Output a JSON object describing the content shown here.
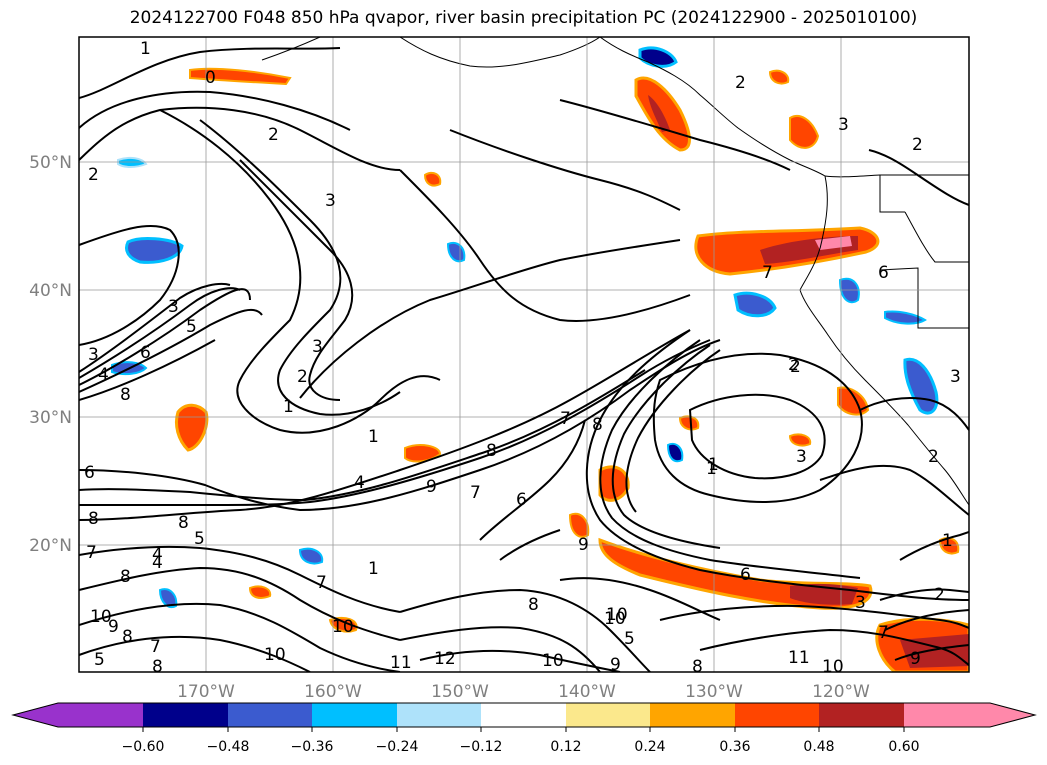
{
  "title": "2024122700 F048 850 hPa qvapor, river basin precipitation PC (2024122900 - 2025010100)",
  "lat_labels": [
    "50°N",
    "40°N",
    "30°N",
    "20°N"
  ],
  "lon_labels": [
    "170°W",
    "160°W",
    "150°W",
    "140°W",
    "130°W",
    "120°W"
  ],
  "colorbar": {
    "tick_labels": [
      "−0.60",
      "−0.48",
      "−0.36",
      "−0.24",
      "−0.12",
      "0.12",
      "0.24",
      "0.36",
      "0.48",
      "0.60"
    ],
    "colors": [
      "#9932cc",
      "#00008b",
      "#3b5bcf",
      "#00bfff",
      "#aee2fa",
      "#ffffff",
      "#fbe88c",
      "#ffa500",
      "#ff4500",
      "#b22222",
      "#ff88aa"
    ]
  },
  "contour_labels": [
    "1",
    "2",
    "0",
    "2",
    "2",
    "3",
    "2",
    "3",
    "3",
    "3",
    "4",
    "5",
    "6",
    "8",
    "2",
    "3",
    "1",
    "1",
    "4",
    "9",
    "7",
    "8",
    "6",
    "7",
    "1",
    "2",
    "6",
    "8",
    "8",
    "7",
    "4",
    "8",
    "5",
    "7",
    "10",
    "9",
    "8",
    "7",
    "5",
    "8",
    "10",
    "10",
    "11",
    "12",
    "10",
    "9",
    "8",
    "10",
    "11",
    "8",
    "5",
    "10",
    "3",
    "2",
    "1",
    "3",
    "6",
    "3",
    "2",
    "6",
    "4",
    "9",
    "10",
    "9",
    "8",
    "1",
    "7",
    "2",
    "1",
    "7"
  ]
}
